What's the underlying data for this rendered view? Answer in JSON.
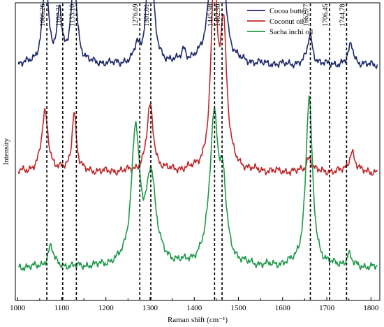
{
  "chart_data": {
    "type": "line",
    "title": "",
    "xlabel": "Raman shift (cm⁻¹)",
    "ylabel": "Intensity",
    "xlim": [
      995,
      1820
    ],
    "xticks": [
      1000,
      1100,
      1200,
      1300,
      1400,
      1500,
      1600,
      1700,
      1800
    ],
    "xtick_labels": [
      "1000",
      "1100",
      "1200",
      "1300",
      "1400",
      "1500",
      "1600",
      "1700",
      "1800"
    ],
    "y_ticks_shown": false,
    "grid": false,
    "legend_position": "top-right",
    "peak_markers": [
      {
        "x": 1066.26,
        "label": "1066.26"
      },
      {
        "x": 1102.21,
        "label": "1102.21"
      },
      {
        "x": 1133.1,
        "label": "1133.10"
      },
      {
        "x": 1276.69,
        "label": "1276.69"
      },
      {
        "x": 1301.61,
        "label": "1301.61"
      },
      {
        "x": 1445.98,
        "label": "1445.98"
      },
      {
        "x": 1462.9,
        "label": "1462.90"
      },
      {
        "x": 1662.77,
        "label": "1662.77"
      },
      {
        "x": 1706.45,
        "label": "1706.45"
      },
      {
        "x": 1744.78,
        "label": "1744.78"
      }
    ],
    "series": [
      {
        "name": "Cocoa butter",
        "color": "#1f2a6b",
        "baseline": 0.79,
        "peaks": [
          {
            "x": 1063,
            "height": 0.28,
            "width": 8
          },
          {
            "x": 1095,
            "height": 0.18,
            "width": 6
          },
          {
            "x": 1128,
            "height": 0.28,
            "width": 8
          },
          {
            "x": 1270,
            "height": 0.05,
            "width": 6
          },
          {
            "x": 1300,
            "height": 0.45,
            "width": 8
          },
          {
            "x": 1376,
            "height": 0.04,
            "width": 6
          },
          {
            "x": 1445,
            "height": 0.57,
            "width": 10
          },
          {
            "x": 1464,
            "height": 0.3,
            "width": 8
          },
          {
            "x": 1662,
            "height": 0.1,
            "width": 7
          },
          {
            "x": 1755,
            "height": 0.07,
            "width": 7
          }
        ]
      },
      {
        "name": "Coconut oil",
        "color": "#c0282a",
        "baseline": 0.43,
        "peaks": [
          {
            "x": 1062,
            "height": 0.2,
            "width": 9
          },
          {
            "x": 1128,
            "height": 0.2,
            "width": 6
          },
          {
            "x": 1300,
            "height": 0.22,
            "width": 9
          },
          {
            "x": 1445,
            "height": 0.64,
            "width": 8
          },
          {
            "x": 1466,
            "height": 0.46,
            "width": 9
          },
          {
            "x": 1660,
            "height": 0.05,
            "width": 7
          },
          {
            "x": 1757,
            "height": 0.07,
            "width": 8
          }
        ]
      },
      {
        "name": "Sacha inchi oil",
        "color": "#1f9a4a",
        "baseline": 0.11,
        "peaks": [
          {
            "x": 1075,
            "height": 0.07,
            "width": 8
          },
          {
            "x": 1267,
            "height": 0.45,
            "width": 11
          },
          {
            "x": 1302,
            "height": 0.3,
            "width": 13
          },
          {
            "x": 1445,
            "height": 0.49,
            "width": 12
          },
          {
            "x": 1465,
            "height": 0.22,
            "width": 9
          },
          {
            "x": 1660,
            "height": 0.57,
            "width": 9
          },
          {
            "x": 1750,
            "height": 0.04,
            "width": 7
          }
        ]
      }
    ]
  }
}
